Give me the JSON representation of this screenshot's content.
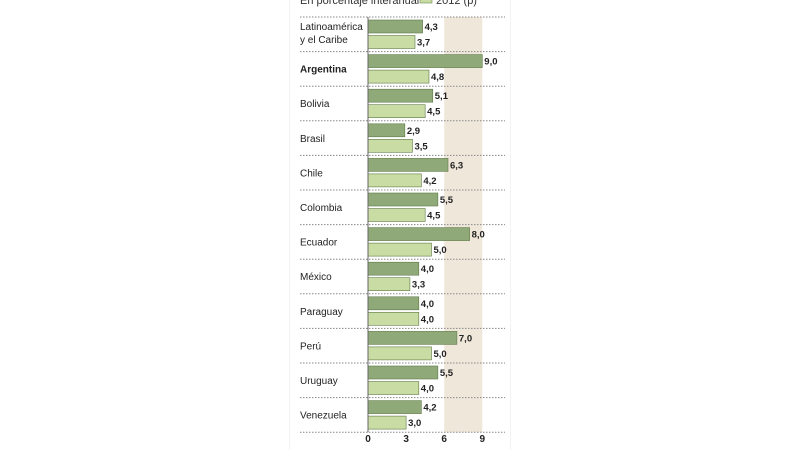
{
  "chart_data": {
    "type": "bar",
    "subtitle": "En porcentaje interanual",
    "legend": [
      {
        "name": "2012 (p)",
        "color": "#c9dca4"
      }
    ],
    "categories": [
      "Latinoamérica y el Caribe",
      "Argentina",
      "Bolivia",
      "Brasil",
      "Chile",
      "Colombia",
      "Ecuador",
      "México",
      "Paraguay",
      "Perú",
      "Uruguay",
      "Venezuela"
    ],
    "value_labels_dark": [
      "4,3",
      "9,0",
      "5,1",
      "2,9",
      "6,3",
      "5,5",
      "8,0",
      "4,0",
      "4,0",
      "7,0",
      "5,5",
      "4,2"
    ],
    "value_labels_light": [
      "3,7",
      "4,8",
      "4,5",
      "3,5",
      "4,2",
      "4,5",
      "5,0",
      "3,3",
      "4,0",
      "5,0",
      "4,0",
      "3,0"
    ],
    "series": [
      {
        "name": "",
        "color": "#8fa978",
        "values": [
          4.3,
          9.0,
          5.1,
          2.9,
          6.3,
          5.5,
          8.0,
          4.0,
          4.0,
          7.0,
          5.5,
          4.2
        ]
      },
      {
        "name": "2012 (p)",
        "color": "#c9dca4",
        "values": [
          3.7,
          4.8,
          4.5,
          3.5,
          4.2,
          4.5,
          5.0,
          3.3,
          4.0,
          5.0,
          4.0,
          3.0
        ]
      }
    ],
    "xticks": [
      "0",
      "3",
      "6",
      "9"
    ],
    "xlim": [
      0,
      9
    ],
    "highlight_range": [
      6,
      9
    ],
    "highlight_color": "#efe7da",
    "bold_category": "Argentina"
  }
}
